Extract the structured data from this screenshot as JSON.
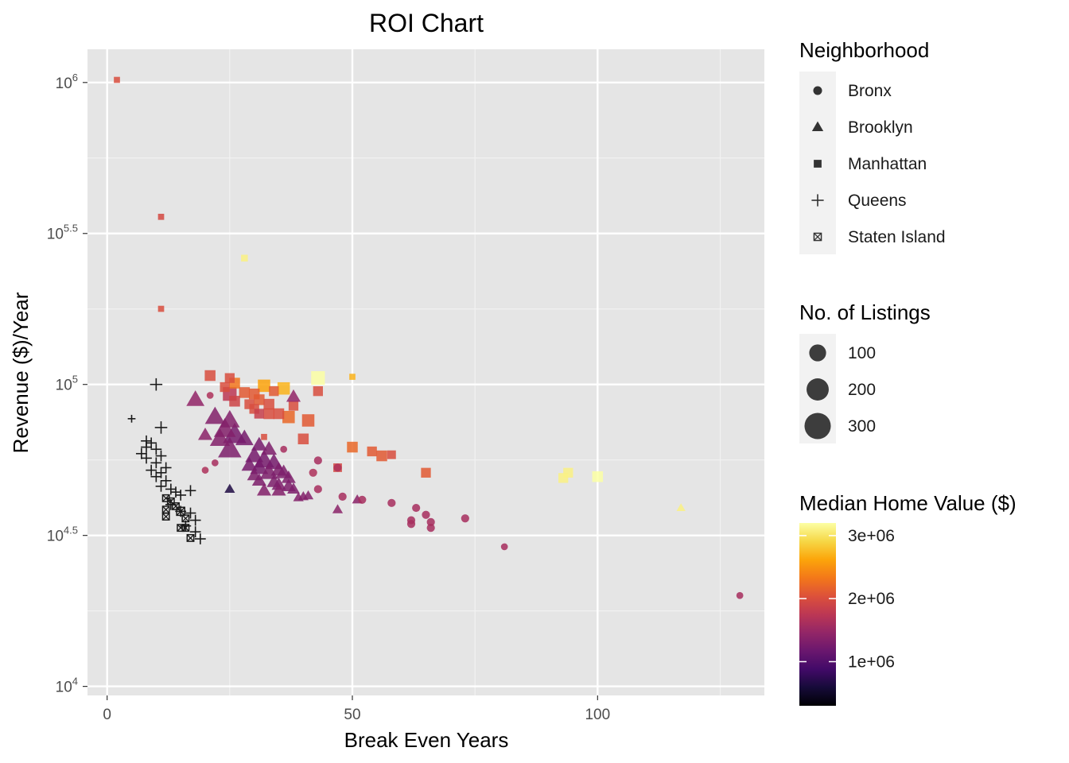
{
  "chart_data": {
    "type": "scatter",
    "title": "ROI Chart",
    "xlabel": "Break Even Years",
    "ylabel": "Revenue ($)/Year",
    "xlim": [
      -4,
      134
    ],
    "ylim_log10": [
      3.97,
      6.11
    ],
    "y_scale": "log10",
    "grid": true,
    "x_ticks": [
      {
        "value": 0,
        "label": "0"
      },
      {
        "value": 50,
        "label": "50"
      },
      {
        "value": 100,
        "label": "100"
      }
    ],
    "y_ticks": [
      {
        "exp": 4,
        "base": "10",
        "sup": "4"
      },
      {
        "exp": 4.5,
        "base": "10",
        "sup": "4.5"
      },
      {
        "exp": 5,
        "base": "10",
        "sup": "5"
      },
      {
        "exp": 5.5,
        "base": "10",
        "sup": "5.5"
      },
      {
        "exp": 6,
        "base": "10",
        "sup": "6"
      }
    ],
    "legend_placement": "right",
    "legends": {
      "shape": {
        "title": "Neighborhood",
        "items": [
          {
            "label": "Bronx",
            "shape": "circle"
          },
          {
            "label": "Brooklyn",
            "shape": "triangle"
          },
          {
            "label": "Manhattan",
            "shape": "square"
          },
          {
            "label": "Queens",
            "shape": "plus"
          },
          {
            "label": "Staten Island",
            "shape": "boxx"
          }
        ]
      },
      "size": {
        "title": "No. of Listings",
        "items": [
          {
            "label": "100",
            "value": 100
          },
          {
            "label": "200",
            "value": 200
          },
          {
            "label": "300",
            "value": 300
          }
        ]
      },
      "color": {
        "title": "Median Home Value ($)",
        "min": 300000,
        "max": 3200000,
        "ticks": [
          {
            "label": "1e+06",
            "value": 1000000
          },
          {
            "label": "2e+06",
            "value": 2000000
          },
          {
            "label": "3e+06",
            "value": 3000000
          }
        ]
      }
    },
    "points_columns": [
      "neighborhood",
      "break_even_years",
      "revenue_per_year",
      "listings",
      "median_home_value"
    ],
    "points": [
      [
        "Manhattan",
        2,
        1020000,
        5,
        2000000
      ],
      [
        "Manhattan",
        11,
        359000,
        5,
        1950000
      ],
      [
        "Manhattan",
        11,
        178000,
        5,
        2000000
      ],
      [
        "Manhattan",
        28,
        262000,
        8,
        3100000
      ],
      [
        "Manhattan",
        21,
        107000,
        40,
        2000000
      ],
      [
        "Manhattan",
        25,
        105000,
        30,
        2000000
      ],
      [
        "Manhattan",
        26,
        101000,
        40,
        2300000
      ],
      [
        "Manhattan",
        24,
        98000,
        30,
        2000000
      ],
      [
        "Manhattan",
        25,
        93000,
        80,
        1750000
      ],
      [
        "Manhattan",
        28,
        94000,
        40,
        2100000
      ],
      [
        "Manhattan",
        32,
        99000,
        60,
        2600000
      ],
      [
        "Manhattan",
        30,
        93000,
        40,
        2100000
      ],
      [
        "Manhattan",
        34,
        95000,
        30,
        2100000
      ],
      [
        "Manhattan",
        36,
        97000,
        60,
        2700000
      ],
      [
        "Manhattan",
        43,
        105000,
        80,
        3200000
      ],
      [
        "Manhattan",
        50,
        106000,
        5,
        2700000
      ],
      [
        "Manhattan",
        43,
        95000,
        30,
        2000000
      ],
      [
        "Manhattan",
        26,
        88000,
        40,
        1900000
      ],
      [
        "Manhattan",
        29,
        86000,
        30,
        2000000
      ],
      [
        "Manhattan",
        31,
        89000,
        40,
        2100000
      ],
      [
        "Manhattan",
        33,
        86000,
        40,
        2000000
      ],
      [
        "Manhattan",
        38,
        85000,
        30,
        2000000
      ],
      [
        "Manhattan",
        30,
        83000,
        30,
        2000000
      ],
      [
        "Manhattan",
        31,
        80000,
        30,
        1850000
      ],
      [
        "Manhattan",
        33,
        80000,
        40,
        2000000
      ],
      [
        "Manhattan",
        35,
        80000,
        40,
        2000000
      ],
      [
        "Manhattan",
        37,
        78000,
        60,
        2200000
      ],
      [
        "Manhattan",
        41,
        76000,
        60,
        2100000
      ],
      [
        "Manhattan",
        40,
        66000,
        40,
        2000000
      ],
      [
        "Manhattan",
        32,
        67000,
        5,
        2000000
      ],
      [
        "Manhattan",
        50,
        62000,
        40,
        2200000
      ],
      [
        "Manhattan",
        54,
        60000,
        30,
        2100000
      ],
      [
        "Manhattan",
        56,
        58000,
        40,
        2100000
      ],
      [
        "Manhattan",
        58,
        58500,
        20,
        2000000
      ],
      [
        "Manhattan",
        47,
        53000,
        20,
        1950000
      ],
      [
        "Manhattan",
        65,
        51000,
        30,
        2100000
      ],
      [
        "Manhattan",
        94,
        51000,
        30,
        3100000
      ],
      [
        "Manhattan",
        93,
        49000,
        30,
        3100000
      ],
      [
        "Manhattan",
        100,
        49500,
        40,
        3200000
      ],
      [
        "Brooklyn",
        18,
        89000,
        60,
        1450000
      ],
      [
        "Brooklyn",
        38,
        91000,
        30,
        1450000
      ],
      [
        "Brooklyn",
        22,
        78000,
        80,
        1350000
      ],
      [
        "Brooklyn",
        25,
        76000,
        80,
        1350000
      ],
      [
        "Brooklyn",
        24,
        71000,
        100,
        1350000
      ],
      [
        "Brooklyn",
        26,
        68000,
        120,
        1250000
      ],
      [
        "Brooklyn",
        23,
        66000,
        80,
        1350000
      ],
      [
        "Brooklyn",
        25,
        61000,
        120,
        1300000
      ],
      [
        "Brooklyn",
        20,
        68000,
        30,
        1400000
      ],
      [
        "Brooklyn",
        28,
        66000,
        60,
        1250000
      ],
      [
        "Brooklyn",
        31,
        63000,
        40,
        1250000
      ],
      [
        "Brooklyn",
        33,
        61000,
        40,
        1300000
      ],
      [
        "Brooklyn",
        30,
        58000,
        60,
        1250000
      ],
      [
        "Brooklyn",
        29,
        54000,
        40,
        1250000
      ],
      [
        "Brooklyn",
        32,
        56000,
        80,
        1250000
      ],
      [
        "Brooklyn",
        34,
        55000,
        60,
        1250000
      ],
      [
        "Brooklyn",
        31,
        53000,
        60,
        1250000
      ],
      [
        "Brooklyn",
        30,
        50000,
        30,
        1300000
      ],
      [
        "Brooklyn",
        33,
        51000,
        60,
        1300000
      ],
      [
        "Brooklyn",
        35,
        52000,
        40,
        1300000
      ],
      [
        "Brooklyn",
        36,
        51000,
        40,
        1300000
      ],
      [
        "Brooklyn",
        37,
        49000,
        30,
        1300000
      ],
      [
        "Brooklyn",
        31,
        48000,
        30,
        1300000
      ],
      [
        "Brooklyn",
        34,
        47500,
        30,
        1300000
      ],
      [
        "Brooklyn",
        35,
        46500,
        30,
        1300000
      ],
      [
        "Brooklyn",
        37,
        46000,
        30,
        1300000
      ],
      [
        "Brooklyn",
        38,
        45000,
        20,
        1300000
      ],
      [
        "Brooklyn",
        32,
        44500,
        30,
        1350000
      ],
      [
        "Brooklyn",
        35,
        44500,
        30,
        1350000
      ],
      [
        "Brooklyn",
        25,
        45000,
        10,
        650000
      ],
      [
        "Brooklyn",
        40,
        42500,
        10,
        1350000
      ],
      [
        "Brooklyn",
        41,
        42800,
        10,
        1350000
      ],
      [
        "Brooklyn",
        39,
        42200,
        10,
        1350000
      ],
      [
        "Brooklyn",
        47,
        38500,
        10,
        1400000
      ],
      [
        "Brooklyn",
        51,
        41500,
        10,
        1400000
      ],
      [
        "Brooklyn",
        117,
        39000,
        5,
        3100000
      ],
      [
        "Bronx",
        22,
        55000,
        5,
        1600000
      ],
      [
        "Bronx",
        20,
        52000,
        5,
        1650000
      ],
      [
        "Bronx",
        36,
        61000,
        5,
        1600000
      ],
      [
        "Bronx",
        43,
        56000,
        10,
        1600000
      ],
      [
        "Bronx",
        47,
        53000,
        10,
        1650000
      ],
      [
        "Bronx",
        42,
        51000,
        10,
        1650000
      ],
      [
        "Bronx",
        43,
        45000,
        10,
        1600000
      ],
      [
        "Bronx",
        48,
        42500,
        10,
        1600000
      ],
      [
        "Bronx",
        52,
        41500,
        10,
        1600000
      ],
      [
        "Bronx",
        58,
        40500,
        10,
        1600000
      ],
      [
        "Bronx",
        63,
        39000,
        10,
        1600000
      ],
      [
        "Bronx",
        65,
        37000,
        10,
        1600000
      ],
      [
        "Bronx",
        62,
        35500,
        10,
        1600000
      ],
      [
        "Bronx",
        62,
        34500,
        10,
        1600000
      ],
      [
        "Bronx",
        66,
        35000,
        10,
        1600000
      ],
      [
        "Bronx",
        66,
        33500,
        10,
        1600000
      ],
      [
        "Bronx",
        73,
        36000,
        10,
        1600000
      ],
      [
        "Bronx",
        81,
        29000,
        5,
        1600000
      ],
      [
        "Bronx",
        129,
        20000,
        5,
        1600000
      ],
      [
        "Bronx",
        21,
        92000,
        5,
        1650000
      ],
      [
        "Queens",
        10,
        100000,
        30,
        600000
      ],
      [
        "Queens",
        5,
        77000,
        5,
        500000
      ],
      [
        "Queens",
        11,
        72000,
        30,
        600000
      ],
      [
        "Queens",
        8,
        65000,
        20,
        550000
      ],
      [
        "Queens",
        9,
        64000,
        20,
        550000
      ],
      [
        "Queens",
        8,
        62000,
        20,
        550000
      ],
      [
        "Queens",
        10,
        61000,
        20,
        550000
      ],
      [
        "Queens",
        7,
        59000,
        20,
        550000
      ],
      [
        "Queens",
        11,
        58000,
        20,
        600000
      ],
      [
        "Queens",
        8,
        57000,
        20,
        550000
      ],
      [
        "Queens",
        10,
        55000,
        20,
        550000
      ],
      [
        "Queens",
        12,
        53000,
        20,
        600000
      ],
      [
        "Queens",
        9,
        52000,
        20,
        550000
      ],
      [
        "Queens",
        11,
        51000,
        20,
        550000
      ],
      [
        "Queens",
        10,
        49500,
        20,
        550000
      ],
      [
        "Queens",
        12,
        48000,
        20,
        600000
      ],
      [
        "Queens",
        11,
        46000,
        20,
        550000
      ],
      [
        "Queens",
        13,
        45000,
        20,
        600000
      ],
      [
        "Queens",
        14,
        44000,
        20,
        600000
      ],
      [
        "Queens",
        15,
        43000,
        20,
        600000
      ],
      [
        "Queens",
        17,
        44500,
        20,
        600000
      ],
      [
        "Queens",
        13,
        40000,
        20,
        600000
      ],
      [
        "Queens",
        15,
        38000,
        20,
        600000
      ],
      [
        "Queens",
        17,
        37500,
        20,
        600000
      ],
      [
        "Queens",
        18,
        35500,
        20,
        600000
      ],
      [
        "Queens",
        16,
        34000,
        20,
        600000
      ],
      [
        "Queens",
        18,
        32500,
        20,
        600000
      ],
      [
        "Queens",
        19,
        30800,
        20,
        600000
      ],
      [
        "Staten Island",
        12,
        42000,
        10,
        450000
      ],
      [
        "Staten Island",
        13,
        41000,
        10,
        450000
      ],
      [
        "Staten Island",
        12,
        38500,
        10,
        450000
      ],
      [
        "Staten Island",
        14,
        39500,
        10,
        450000
      ],
      [
        "Staten Island",
        15,
        38000,
        20,
        450000
      ],
      [
        "Staten Island",
        12,
        36500,
        10,
        450000
      ],
      [
        "Staten Island",
        16,
        36000,
        10,
        450000
      ],
      [
        "Staten Island",
        15,
        33500,
        10,
        450000
      ],
      [
        "Staten Island",
        16,
        33500,
        10,
        450000
      ],
      [
        "Staten Island",
        17,
        31000,
        10,
        450000
      ]
    ]
  }
}
